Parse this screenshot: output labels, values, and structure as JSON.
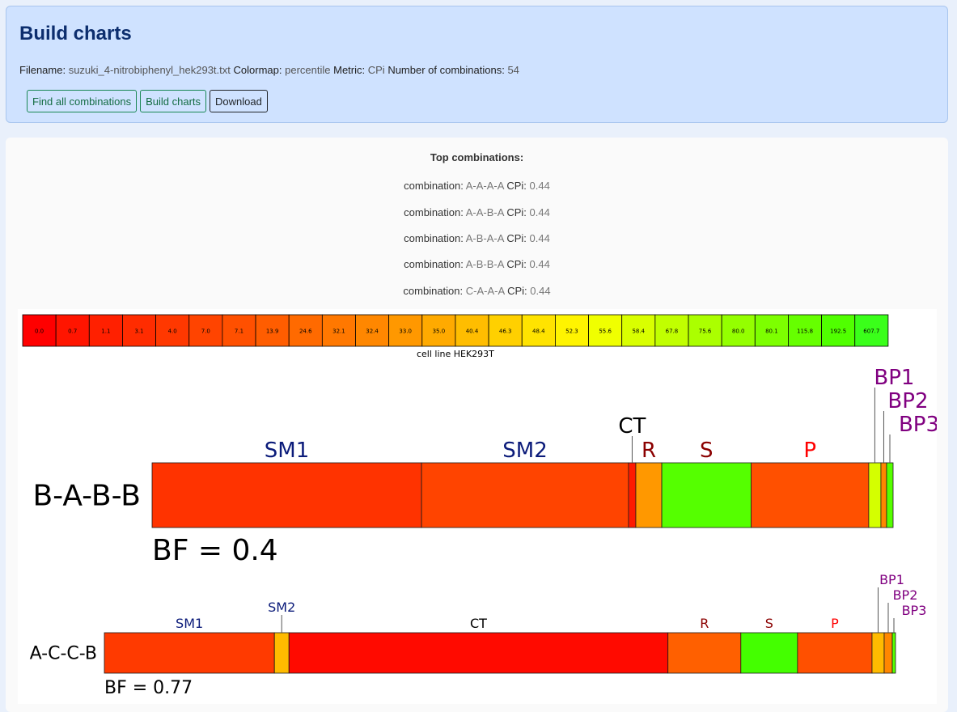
{
  "header": {
    "title": "Build charts",
    "filename_label": "Filename:",
    "filename": "suzuki_4-nitrobiphenyl_hek293t.txt",
    "colormap_label": "Colormap:",
    "colormap": "percentile",
    "metric_label": "Metric:",
    "metric": "CPi",
    "combinations_label": "Number of combinations:",
    "combinations": "54",
    "buttons": {
      "find_all": "Find all combinations",
      "build": "Build charts",
      "download": "Download"
    }
  },
  "top": {
    "title": "Top combinations:",
    "items": [
      {
        "label": "combination:",
        "combo": "A-A-A-A",
        "metric": "CPi:",
        "value": "0.44"
      },
      {
        "label": "combination:",
        "combo": "A-A-B-A",
        "metric": "CPi:",
        "value": "0.44"
      },
      {
        "label": "combination:",
        "combo": "A-B-A-A",
        "metric": "CPi:",
        "value": "0.44"
      },
      {
        "label": "combination:",
        "combo": "A-B-B-A",
        "metric": "CPi:",
        "value": "0.44"
      },
      {
        "label": "combination:",
        "combo": "C-A-A-A",
        "metric": "CPi:",
        "value": "0.44"
      }
    ]
  },
  "chart_data": [
    {
      "type": "heatmap",
      "xlabel": "cell line HEK293T",
      "values": [
        "0.0",
        "0.7",
        "1.1",
        "3.1",
        "4.0",
        "7.0",
        "7.1",
        "13.9",
        "24.6",
        "32.1",
        "32.4",
        "33.0",
        "35.0",
        "40.4",
        "46.3",
        "48.4",
        "52.3",
        "55.6",
        "58.4",
        "67.8",
        "75.6",
        "80.0",
        "80.1",
        "115.8",
        "192.5",
        "607.7"
      ],
      "colors": [
        "#ff0000",
        "#ff1500",
        "#ff2000",
        "#ff2c00",
        "#ff3800",
        "#ff4400",
        "#ff5000",
        "#ff5d00",
        "#ff6a00",
        "#ff7800",
        "#ff8700",
        "#ff9800",
        "#ffaa00",
        "#ffbd00",
        "#ffd000",
        "#ffe300",
        "#fff400",
        "#f0ff00",
        "#d9ff00",
        "#c1ff00",
        "#abff00",
        "#94ff00",
        "#7dff00",
        "#66ff00",
        "#50ff00",
        "#3aff1a"
      ]
    },
    {
      "type": "bar",
      "name": "B-A-B-B",
      "bf": "BF = 0.4",
      "segments": [
        {
          "label": "SM1",
          "value": 332,
          "color": "#ff3300",
          "label_color": "#0b1b7a"
        },
        {
          "label": "SM2",
          "value": 255,
          "color": "#ff4400",
          "label_color": "#0b1b7a"
        },
        {
          "label": "CT",
          "value": 9,
          "color": "#ff1a00",
          "label_color": "#000000"
        },
        {
          "label": "R",
          "value": 32,
          "color": "#ff9800",
          "label_color": "#8b0000"
        },
        {
          "label": "S",
          "value": 110,
          "color": "#55ff00",
          "label_color": "#8b0000"
        },
        {
          "label": "P",
          "value": 145,
          "color": "#ff5000",
          "label_color": "#ff0000"
        },
        {
          "label": "BP1",
          "value": 15,
          "color": "#d4ff00",
          "label_color": "#800080"
        },
        {
          "label": "BP2",
          "value": 7,
          "color": "#ff8700",
          "label_color": "#800080"
        },
        {
          "label": "BP3",
          "value": 8,
          "color": "#55ff00",
          "label_color": "#800080"
        }
      ]
    },
    {
      "type": "bar",
      "name": "A-C-C-B",
      "bf": "BF = 0.77",
      "segments": [
        {
          "label": "SM1",
          "value": 210,
          "color": "#ff3a00",
          "label_color": "#0b1b7a"
        },
        {
          "label": "SM2",
          "value": 18,
          "color": "#ffbb00",
          "label_color": "#0b1b7a"
        },
        {
          "label": "CT",
          "value": 468,
          "color": "#ff0a00",
          "label_color": "#000000"
        },
        {
          "label": "R",
          "value": 90,
          "color": "#ff6000",
          "label_color": "#8b0000"
        },
        {
          "label": "S",
          "value": 70,
          "color": "#44ff00",
          "label_color": "#8b0000"
        },
        {
          "label": "P",
          "value": 92,
          "color": "#ff5000",
          "label_color": "#ff0000"
        },
        {
          "label": "BP1",
          "value": 15,
          "color": "#ffbb00",
          "label_color": "#800080"
        },
        {
          "label": "BP2",
          "value": 10,
          "color": "#ff8700",
          "label_color": "#800080"
        },
        {
          "label": "BP3",
          "value": 4,
          "color": "#55ff00",
          "label_color": "#800080"
        }
      ]
    }
  ]
}
